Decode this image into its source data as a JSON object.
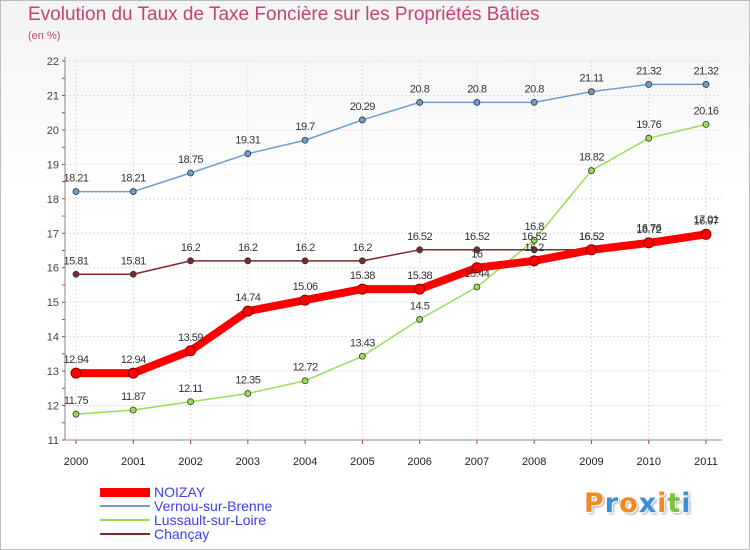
{
  "header": {
    "title": "Evolution du Taux de Taxe Foncière sur les Propriétés Bâties",
    "unit": "(en %)"
  },
  "chart_data": {
    "type": "line",
    "title": "Evolution du Taux de Taxe Foncière sur les Propriétés Bâties",
    "ylabel": "(en %)",
    "x": [
      "2000",
      "2001",
      "2002",
      "2003",
      "2004",
      "2005",
      "2006",
      "2007",
      "2008",
      "2009",
      "2010",
      "2011"
    ],
    "ylim": [
      11,
      22
    ],
    "yticks": [
      11,
      12,
      13,
      14,
      15,
      16,
      17,
      18,
      19,
      20,
      21,
      22
    ],
    "grid": true,
    "series": [
      {
        "name": "NOIZAY",
        "color": "#ff0000",
        "values": [
          12.94,
          12.94,
          13.59,
          14.74,
          15.06,
          15.38,
          15.38,
          16,
          16.2,
          16.52,
          16.72,
          16.97
        ]
      },
      {
        "name": "Vernou-sur-Brenne",
        "color": "#6d9ed0",
        "values": [
          18.21,
          18.21,
          18.75,
          19.31,
          19.7,
          20.29,
          20.8,
          20.8,
          20.8,
          21.11,
          21.32,
          21.32
        ]
      },
      {
        "name": "Lussault-sur-Loire",
        "color": "#99dd55",
        "values": [
          11.75,
          11.87,
          12.11,
          12.35,
          12.72,
          13.43,
          14.5,
          15.44,
          16.8,
          18.82,
          19.76,
          20.16
        ]
      },
      {
        "name": "Chançay",
        "color": "#7b2d2d",
        "values": [
          15.81,
          15.81,
          16.2,
          16.2,
          16.2,
          16.2,
          16.52,
          16.52,
          16.52,
          16.52,
          16.76,
          17.01
        ]
      }
    ],
    "legend_position": "bottom-left"
  },
  "legend": [
    {
      "label": "NOIZAY",
      "color": "#ff0000"
    },
    {
      "label": "Vernou-sur-Brenne",
      "color": "#6d9ed0"
    },
    {
      "label": "Lussault-sur-Loire",
      "color": "#99dd55"
    },
    {
      "label": "Chançay",
      "color": "#7b2d2d"
    }
  ],
  "logo": {
    "text": "Proxiti",
    "letter_colors": [
      "#f08a1c",
      "#3b8fd6",
      "#f08a1c",
      "#3b8fd6",
      "#f08a1c",
      "#7ac142",
      "#3b8fd6"
    ]
  }
}
